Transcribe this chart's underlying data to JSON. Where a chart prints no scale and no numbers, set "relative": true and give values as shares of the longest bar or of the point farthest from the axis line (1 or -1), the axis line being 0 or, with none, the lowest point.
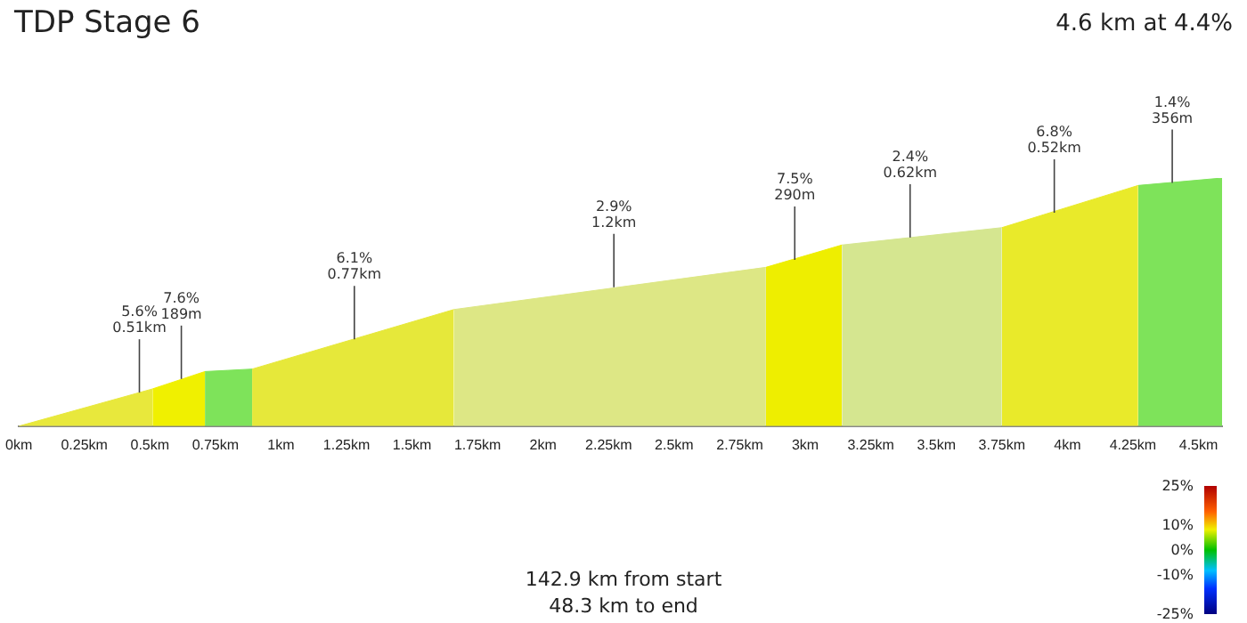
{
  "chart_data": {
    "type": "area",
    "title": "TDP Stage 6",
    "subtitle": "4.6 km at 4.4%",
    "relative": true,
    "series": [
      {
        "color": "#e8e83c",
        "x": [
          0,
          0.51
        ],
        "values": [
          0,
          0.15
        ]
      },
      {
        "color": "#f0f000",
        "x": [
          0.51,
          0.71
        ],
        "values": [
          0.15,
          0.22
        ]
      },
      {
        "color": "#7ee35a",
        "x": [
          0.71,
          0.89
        ],
        "values": [
          0.22,
          0.23
        ]
      },
      {
        "color": "#e6e83a",
        "x": [
          0.89,
          1.66
        ],
        "values": [
          0.23,
          0.47
        ]
      },
      {
        "color": "#dde785",
        "x": [
          1.66,
          2.85
        ],
        "values": [
          0.47,
          0.64
        ]
      },
      {
        "color": "#eeee00",
        "x": [
          2.85,
          3.14
        ],
        "values": [
          0.64,
          0.73
        ]
      },
      {
        "color": "#d5e690",
        "x": [
          3.14,
          3.75
        ],
        "values": [
          0.73,
          0.8
        ]
      },
      {
        "color": "#e9ea2a",
        "x": [
          3.75,
          4.27
        ],
        "values": [
          0.8,
          0.97
        ]
      },
      {
        "color": "#7ee35a",
        "x": [
          4.27,
          4.59
        ],
        "values": [
          0.97,
          1
        ]
      }
    ],
    "xlim": [
      0,
      4.59
    ],
    "xticks": [
      {
        "value": 0,
        "label": "0km"
      },
      {
        "value": 0.25,
        "label": "0.25km"
      },
      {
        "value": 0.5,
        "label": "0.5km"
      },
      {
        "value": 0.75,
        "label": "0.75km"
      },
      {
        "value": 1,
        "label": "1km"
      },
      {
        "value": 1.25,
        "label": "1.25km"
      },
      {
        "value": 1.5,
        "label": "1.5km"
      },
      {
        "value": 1.75,
        "label": "1.75km"
      },
      {
        "value": 2,
        "label": "2km"
      },
      {
        "value": 2.25,
        "label": "2.25km"
      },
      {
        "value": 2.5,
        "label": "2.5km"
      },
      {
        "value": 2.75,
        "label": "2.75km"
      },
      {
        "value": 3,
        "label": "3km"
      },
      {
        "value": 3.25,
        "label": "3.25km"
      },
      {
        "value": 3.5,
        "label": "3.5km"
      },
      {
        "value": 3.75,
        "label": "3.75km"
      },
      {
        "value": 4,
        "label": "4km"
      },
      {
        "value": 4.25,
        "label": "4.25km"
      },
      {
        "value": 4.5,
        "label": "4.5km"
      }
    ],
    "annotations": [
      {
        "text": "5.6%\n0.51km",
        "x": 0.46,
        "y": 0.135
      },
      {
        "text": "7.6%\n189m",
        "x": 0.62,
        "y": 0.19
      },
      {
        "text": "6.1%\n0.77km",
        "x": 1.28,
        "y": 0.35
      },
      {
        "text": "2.9%\n1.2km",
        "x": 2.27,
        "y": 0.56
      },
      {
        "text": "7.5%\n290m",
        "x": 2.96,
        "y": 0.67
      },
      {
        "text": "2.4%\n0.62km",
        "x": 3.4,
        "y": 0.76
      },
      {
        "text": "6.8%\n0.52km",
        "x": 3.95,
        "y": 0.86
      },
      {
        "text": "1.4%\n356m",
        "x": 4.4,
        "y": 0.98
      },
      "142.9 km from start\n48.3 km to end"
    ],
    "clim": [
      -25,
      25
    ],
    "cticks": [
      {
        "value": 25,
        "label": "25%"
      },
      {
        "value": 10,
        "label": "10%"
      },
      {
        "value": 0,
        "label": "0%"
      },
      {
        "value": -10,
        "label": "-10%"
      },
      {
        "value": -25,
        "label": "-25%"
      }
    ],
    "grid": false,
    "legend": false
  }
}
